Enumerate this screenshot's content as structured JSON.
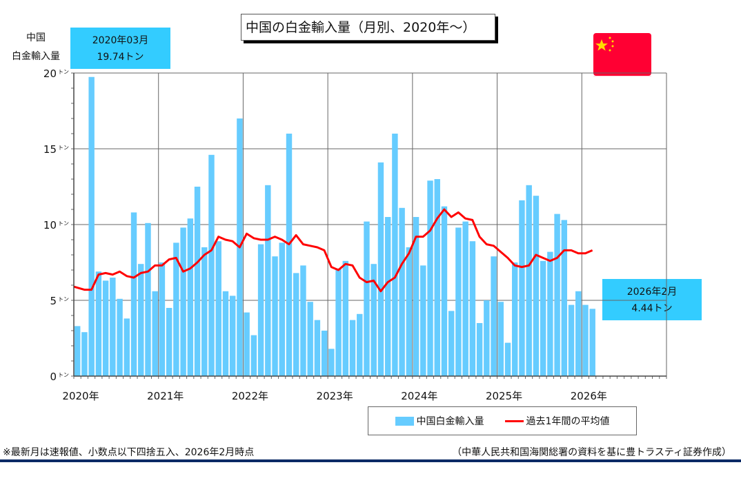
{
  "title": "中国の白金輸入量（月別、2020年～）",
  "y_axis_label_line1": "中国",
  "y_axis_label_line2": "白金輸入量",
  "callout_first": {
    "date": "2020年03月",
    "value": "19.74トン"
  },
  "callout_last": {
    "date": "2026年2月",
    "value": "4.44トン"
  },
  "legend": {
    "bar": "中国白金輸入量",
    "line": "過去1年間の平均値"
  },
  "note_left": "※最新月は速報値、小数点以下四捨五入、2026年2月時点",
  "note_right": "（中華人民共和国海関総署の資料を基に豊トラスティ証券作成）",
  "colors": {
    "bar": "#66ccff",
    "line": "#ff0000",
    "callout": "#33ccff",
    "rule": "#0b2a66",
    "flag": "#ff0033",
    "star": "#ffdd00"
  },
  "chart_data": {
    "type": "bar",
    "title": "中国の白金輸入量（月別、2020年～）",
    "ylabel": "中国 白金輸入量",
    "y_unit": "トン",
    "ylim": [
      0,
      20
    ],
    "yticks": [
      0,
      5,
      10,
      15,
      20
    ],
    "x_start": "2020-01",
    "x_months_span": 84,
    "xtick_labels": [
      "2020年",
      "2021年",
      "2022年",
      "2023年",
      "2024年",
      "2025年",
      "2026年"
    ],
    "grid": true,
    "legend_position": "bottom-right",
    "series": [
      {
        "name": "中国白金輸入量",
        "type": "bar",
        "values": [
          3.3,
          2.9,
          19.74,
          6.9,
          6.3,
          6.5,
          5.1,
          3.8,
          10.8,
          7.4,
          10.1,
          5.6,
          7.5,
          4.5,
          8.8,
          9.8,
          10.4,
          12.5,
          8.5,
          14.6,
          8.9,
          5.6,
          5.3,
          17.0,
          4.2,
          2.7,
          8.7,
          12.6,
          7.9,
          8.8,
          16.0,
          6.8,
          7.3,
          4.9,
          3.7,
          3.0,
          1.8,
          7.1,
          7.6,
          3.7,
          4.1,
          10.2,
          7.4,
          14.1,
          10.5,
          16.0,
          11.1,
          8.5,
          10.5,
          7.3,
          12.9,
          13.0,
          11.2,
          4.3,
          9.8,
          10.2,
          8.9,
          3.5,
          5.0,
          7.9,
          4.9,
          2.2,
          7.5,
          11.6,
          12.6,
          11.9,
          7.6,
          8.2,
          10.7,
          10.3,
          4.7,
          5.6,
          4.7,
          4.44
        ]
      },
      {
        "name": "過去1年間の平均値",
        "type": "line",
        "values": [
          5.9,
          5.7,
          5.7,
          6.7,
          6.8,
          6.7,
          6.9,
          6.6,
          6.5,
          6.8,
          6.9,
          7.3,
          7.3,
          7.7,
          7.8,
          6.9,
          7.1,
          7.5,
          8.0,
          8.3,
          9.2,
          9.0,
          8.9,
          8.5,
          9.4,
          9.1,
          9.0,
          9.0,
          9.2,
          9.0,
          8.7,
          9.3,
          8.7,
          8.6,
          8.5,
          8.3,
          7.2,
          7.0,
          7.4,
          7.3,
          6.5,
          6.2,
          6.3,
          5.6,
          6.2,
          6.5,
          7.4,
          8.1,
          9.2,
          9.2,
          9.6,
          10.4,
          11.0,
          10.5,
          10.8,
          10.4,
          10.3,
          9.2,
          8.7,
          8.6,
          8.2,
          7.8,
          7.3,
          7.2,
          7.3,
          8.0,
          7.8,
          7.6,
          7.8,
          8.3,
          8.3,
          8.1,
          8.1,
          8.3
        ]
      }
    ]
  }
}
